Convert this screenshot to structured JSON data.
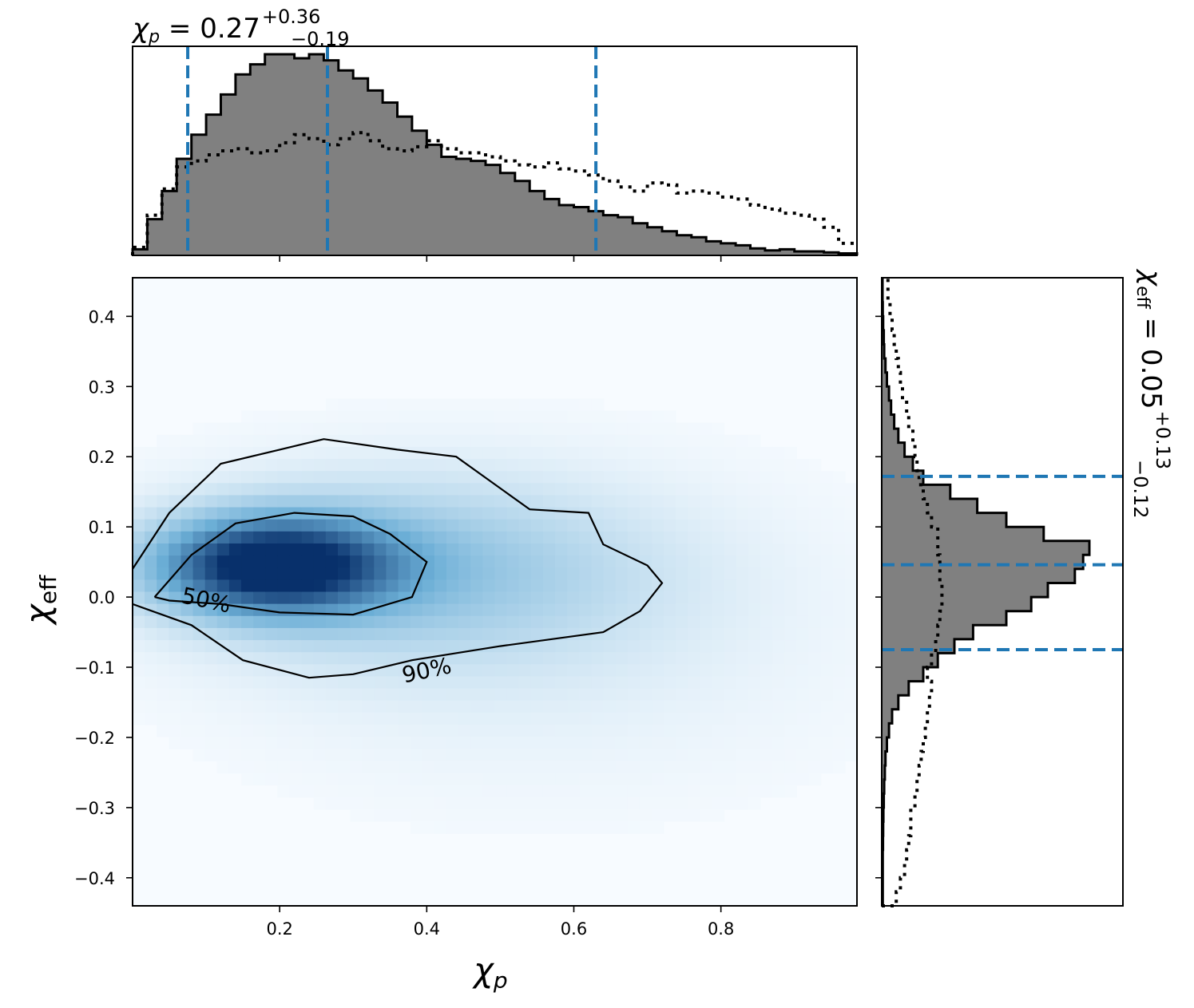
{
  "chart_data": {
    "type": "heatmap",
    "x_axis": {
      "label_symbol": "χ",
      "label_sub": "p",
      "ticks": [
        "0.2",
        "0.4",
        "0.6",
        "0.8"
      ],
      "range": [
        0.0,
        0.985
      ]
    },
    "y_axis": {
      "label_symbol": "χ",
      "label_sub": "eff",
      "ticks": [
        "0.4",
        "0.3",
        "0.2",
        "0.1",
        "0.0",
        "−0.1",
        "−0.2",
        "−0.3",
        "−0.4"
      ],
      "range": [
        -0.44,
        0.455
      ]
    },
    "colormap": {
      "low": "#f7fbff",
      "mid": "#6baed6",
      "high": "#08306b"
    },
    "density_peak": {
      "x": 0.18,
      "y": 0.045
    },
    "contours": [
      {
        "label": "50%",
        "points": [
          [
            0.03,
            0.0
          ],
          [
            0.08,
            0.06
          ],
          [
            0.14,
            0.105
          ],
          [
            0.22,
            0.12
          ],
          [
            0.3,
            0.115
          ],
          [
            0.35,
            0.09
          ],
          [
            0.4,
            0.05
          ],
          [
            0.38,
            0.0
          ],
          [
            0.3,
            -0.025
          ],
          [
            0.2,
            -0.022
          ],
          [
            0.12,
            -0.01
          ],
          [
            0.05,
            -0.005
          ],
          [
            0.03,
            0.0
          ]
        ]
      },
      {
        "label": "90%",
        "points": [
          [
            0.0,
            0.04
          ],
          [
            0.05,
            0.12
          ],
          [
            0.12,
            0.19
          ],
          [
            0.2,
            0.21
          ],
          [
            0.26,
            0.225
          ],
          [
            0.36,
            0.21
          ],
          [
            0.44,
            0.2
          ],
          [
            0.54,
            0.125
          ],
          [
            0.62,
            0.12
          ],
          [
            0.64,
            0.075
          ],
          [
            0.7,
            0.045
          ],
          [
            0.72,
            0.02
          ],
          [
            0.69,
            -0.02
          ],
          [
            0.64,
            -0.05
          ],
          [
            0.5,
            -0.07
          ],
          [
            0.38,
            -0.09
          ],
          [
            0.3,
            -0.11
          ],
          [
            0.24,
            -0.115
          ],
          [
            0.15,
            -0.09
          ],
          [
            0.08,
            -0.04
          ],
          [
            0.0,
            -0.01
          ]
        ]
      }
    ],
    "top_hist": {
      "title_symbol": "χ",
      "title_sub": "p",
      "title_value": " = 0.27",
      "title_upper": "+0.36",
      "title_lower": "−0.19",
      "bin_edges_x": [
        0.0,
        0.02,
        0.04,
        0.06,
        0.08,
        0.1,
        0.12,
        0.14,
        0.16,
        0.18,
        0.2,
        0.22,
        0.24,
        0.26,
        0.28,
        0.3,
        0.32,
        0.34,
        0.36,
        0.38,
        0.4,
        0.42,
        0.44,
        0.46,
        0.48,
        0.5,
        0.52,
        0.54,
        0.56,
        0.58,
        0.6,
        0.62,
        0.64,
        0.66,
        0.68,
        0.7,
        0.72,
        0.74,
        0.76,
        0.78,
        0.8,
        0.82,
        0.84,
        0.86,
        0.88,
        0.9,
        0.92,
        0.94,
        0.96,
        0.985
      ],
      "filled_values": [
        0.03,
        0.18,
        0.32,
        0.48,
        0.6,
        0.7,
        0.8,
        0.9,
        0.95,
        1.0,
        1.0,
        0.98,
        1.0,
        0.97,
        0.92,
        0.88,
        0.82,
        0.76,
        0.69,
        0.62,
        0.55,
        0.49,
        0.48,
        0.47,
        0.45,
        0.41,
        0.37,
        0.32,
        0.28,
        0.25,
        0.24,
        0.22,
        0.2,
        0.19,
        0.16,
        0.14,
        0.12,
        0.1,
        0.09,
        0.07,
        0.06,
        0.05,
        0.035,
        0.025,
        0.03,
        0.02,
        0.02,
        0.015,
        0.01
      ],
      "prior_values": [
        0.04,
        0.2,
        0.33,
        0.44,
        0.47,
        0.5,
        0.52,
        0.53,
        0.51,
        0.52,
        0.56,
        0.6,
        0.58,
        0.55,
        0.58,
        0.61,
        0.57,
        0.53,
        0.52,
        0.54,
        0.57,
        0.53,
        0.51,
        0.51,
        0.49,
        0.47,
        0.45,
        0.44,
        0.46,
        0.43,
        0.42,
        0.4,
        0.37,
        0.34,
        0.32,
        0.36,
        0.35,
        0.31,
        0.32,
        0.31,
        0.29,
        0.28,
        0.25,
        0.23,
        0.21,
        0.2,
        0.18,
        0.14,
        0.06
      ],
      "quantiles": [
        0.075,
        0.265,
        0.63
      ]
    },
    "right_hist": {
      "title_symbol": "χ",
      "title_sub": "eff",
      "title_value": " = 0.05",
      "title_upper": "+0.13",
      "title_lower": "−0.12",
      "bin_edges_y": [
        -0.44,
        -0.42,
        -0.4,
        -0.38,
        -0.36,
        -0.34,
        -0.32,
        -0.3,
        -0.28,
        -0.26,
        -0.24,
        -0.22,
        -0.2,
        -0.18,
        -0.16,
        -0.14,
        -0.12,
        -0.1,
        -0.08,
        -0.06,
        -0.04,
        -0.02,
        0.0,
        0.02,
        0.04,
        0.06,
        0.08,
        0.1,
        0.12,
        0.14,
        0.16,
        0.18,
        0.2,
        0.22,
        0.24,
        0.26,
        0.28,
        0.3,
        0.32,
        0.34,
        0.36,
        0.38,
        0.4,
        0.42,
        0.455
      ],
      "filled_values": [
        0.005,
        0.005,
        0.005,
        0.005,
        0.006,
        0.007,
        0.008,
        0.01,
        0.012,
        0.015,
        0.018,
        0.025,
        0.035,
        0.05,
        0.08,
        0.13,
        0.2,
        0.27,
        0.35,
        0.44,
        0.6,
        0.72,
        0.8,
        0.93,
        0.97,
        1.0,
        0.78,
        0.6,
        0.46,
        0.33,
        0.2,
        0.15,
        0.11,
        0.08,
        0.06,
        0.045,
        0.035,
        0.025,
        0.018,
        0.012,
        0.01,
        0.007,
        0.005,
        0.004
      ],
      "prior_values": [
        0.07,
        0.09,
        0.11,
        0.12,
        0.13,
        0.14,
        0.14,
        0.16,
        0.17,
        0.18,
        0.19,
        0.2,
        0.21,
        0.22,
        0.23,
        0.24,
        0.22,
        0.24,
        0.26,
        0.27,
        0.28,
        0.29,
        0.29,
        0.28,
        0.28,
        0.27,
        0.27,
        0.24,
        0.22,
        0.2,
        0.18,
        0.17,
        0.16,
        0.15,
        0.13,
        0.12,
        0.1,
        0.09,
        0.08,
        0.07,
        0.06,
        0.05,
        0.04,
        0.03
      ],
      "quantiles": [
        -0.075,
        0.046,
        0.172
      ]
    },
    "colors": {
      "hist_fill": "#808080",
      "hist_edge": "#000000",
      "quantile_line": "#1f77b4",
      "contour": "#000000"
    }
  }
}
